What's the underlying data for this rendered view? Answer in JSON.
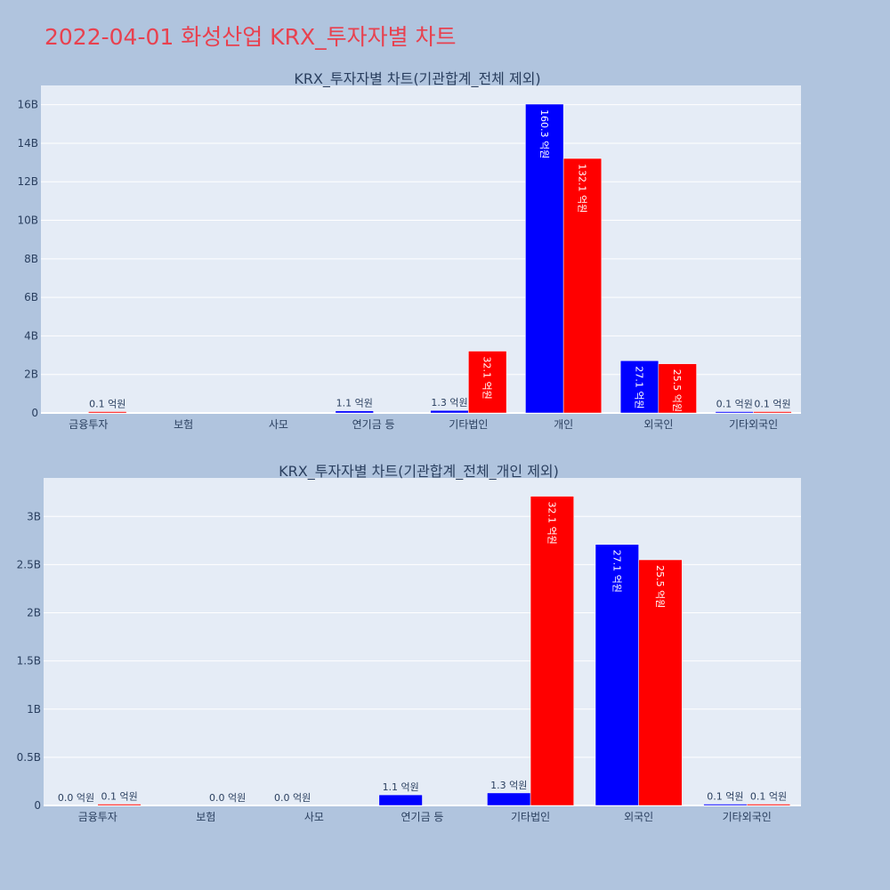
{
  "page": {
    "title": "2022-04-01 화성산업 KRX_투자자별 차트"
  },
  "colors": {
    "background": "#b0c4de",
    "plot_bg": "#e5ecf6",
    "title": "#e8414f",
    "buy": "#0000ff",
    "sell": "#ff0000",
    "text": "#2a3f5f"
  },
  "chart_data": [
    {
      "type": "bar",
      "title": "KRX_투자자별 차트(기관합계_전체 제외)",
      "categories": [
        "금융투자",
        "보험",
        "사모",
        "연기금 등",
        "기타법인",
        "개인",
        "외국인",
        "기타외국인"
      ],
      "series": [
        {
          "color": "#0000ff",
          "values": [
            0,
            0,
            0,
            110000000,
            130000000,
            16030000000,
            2710000000,
            10000000
          ],
          "labels": [
            "",
            "",
            "",
            "1.1 억원",
            "1.3 억원",
            "160.3 억원",
            "27.1 억원",
            "0.1 억원"
          ]
        },
        {
          "color": "#ff0000",
          "values": [
            10000000,
            0,
            0,
            0,
            3210000000,
            13210000000,
            2550000000,
            10000000
          ],
          "labels": [
            "0.1 억원",
            "",
            "",
            "",
            "32.1 억원",
            "132.1 억원",
            "25.5 억원",
            "0.1 억원"
          ]
        }
      ],
      "ylim": [
        0,
        17000000000
      ],
      "yticks": [
        0,
        2000000000,
        4000000000,
        6000000000,
        8000000000,
        10000000000,
        12000000000,
        14000000000,
        16000000000
      ],
      "ytick_labels": [
        "0",
        "2B",
        "4B",
        "6B",
        "8B",
        "10B",
        "12B",
        "14B",
        "16B"
      ],
      "grid": true
    },
    {
      "type": "bar",
      "title": "KRX_투자자별 차트(기관합계_전체_개인 제외)",
      "categories": [
        "금융투자",
        "보험",
        "사모",
        "연기금 등",
        "기타법인",
        "외국인",
        "기타외국인"
      ],
      "series": [
        {
          "color": "#0000ff",
          "values": [
            0,
            0,
            0,
            110000000,
            130000000,
            2710000000,
            10000000
          ],
          "labels": [
            "0.0 억원",
            "",
            "0.0 억원",
            "1.1 억원",
            "1.3 억원",
            "27.1 억원",
            "0.1 억원"
          ]
        },
        {
          "color": "#ff0000",
          "values": [
            10000000,
            0,
            0,
            0,
            3210000000,
            2550000000,
            10000000
          ],
          "labels": [
            "0.1 억원",
            "0.0 억원",
            "",
            "",
            "32.1 억원",
            "25.5 억원",
            "0.1 억원"
          ]
        }
      ],
      "ylim": [
        0,
        3400000000
      ],
      "yticks": [
        0,
        500000000,
        1000000000,
        1500000000,
        2000000000,
        2500000000,
        3000000000
      ],
      "ytick_labels": [
        "0",
        "0.5B",
        "1B",
        "1.5B",
        "2B",
        "2.5B",
        "3B"
      ],
      "grid": true
    }
  ]
}
